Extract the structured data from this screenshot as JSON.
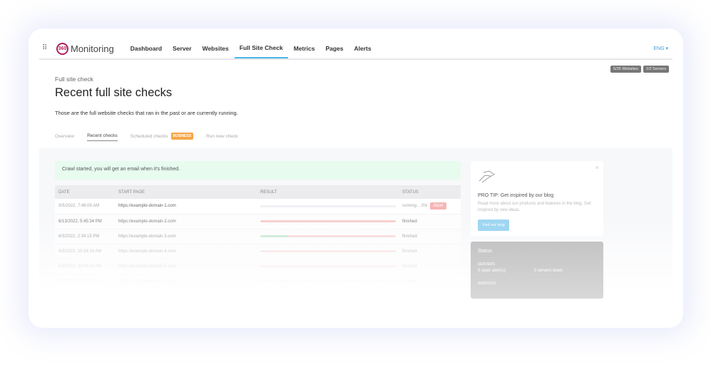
{
  "nav": {
    "logo_mark": "360",
    "brand": "Monitoring",
    "items": [
      "Dashboard",
      "Server",
      "Websites",
      "Full Site Check",
      "Metrics",
      "Pages",
      "Alerts"
    ],
    "active": "Full Site Check",
    "language": "ENG ▾"
  },
  "badges": [
    "5/25 Websites",
    "1/2 Servers"
  ],
  "header": {
    "breadcrumb": "Full site check",
    "title": "Recent full site checks",
    "description": "Those are the full website checks that ran in the past or are currently running."
  },
  "tabs": {
    "overview": "Overview",
    "recent": "Recent checks",
    "scheduled": "Scheduled checks",
    "business_badge": "BUSINESS",
    "run": "Run new check"
  },
  "alert": "Crawl started, you will get an email when it's finished.",
  "table": {
    "headers": [
      "DATE",
      "START PAGE",
      "RESULT",
      "STATUS"
    ],
    "rows": [
      {
        "date": "9/5/2022, 7:48:09 AM",
        "page": "https://example-domain-1.com",
        "pass": 0,
        "status": "running... 0%",
        "action": "Abort"
      },
      {
        "date": "6/13/2022, 5:45:34 PM",
        "page": "https://example-domain-2.com",
        "pass": 0,
        "status": "finished"
      },
      {
        "date": "6/3/2022, 2:34:15 PM",
        "page": "https://example-domain-3.com",
        "pass": 0.2,
        "status": "finished"
      },
      {
        "date": "6/3/2022, 10:34:24 AM",
        "page": "https://example-domain-4.com",
        "pass": 0,
        "status": "finished"
      },
      {
        "date": "6/3/2022, 10:09:40 AM",
        "page": "https://example-domain-5.com",
        "pass": 0,
        "status": "finished"
      },
      {
        "date": "6/3/2022, 9:59:40 AM",
        "page": "https://example-domain-6.com",
        "pass": 1,
        "status": "finished"
      }
    ]
  },
  "tip": {
    "title": "PRO TIP: Get inspired by our blog",
    "text": "Read more about our products and features in the blog. Get inspired by new ideas.",
    "button": "Visit our blog",
    "close": "×"
  },
  "status": {
    "title": "Status",
    "servers_label": "SERVERS",
    "open_alerts": "0 open alert(s)",
    "servers_down": "0 servers down",
    "websites_label": "WEBSITES"
  }
}
